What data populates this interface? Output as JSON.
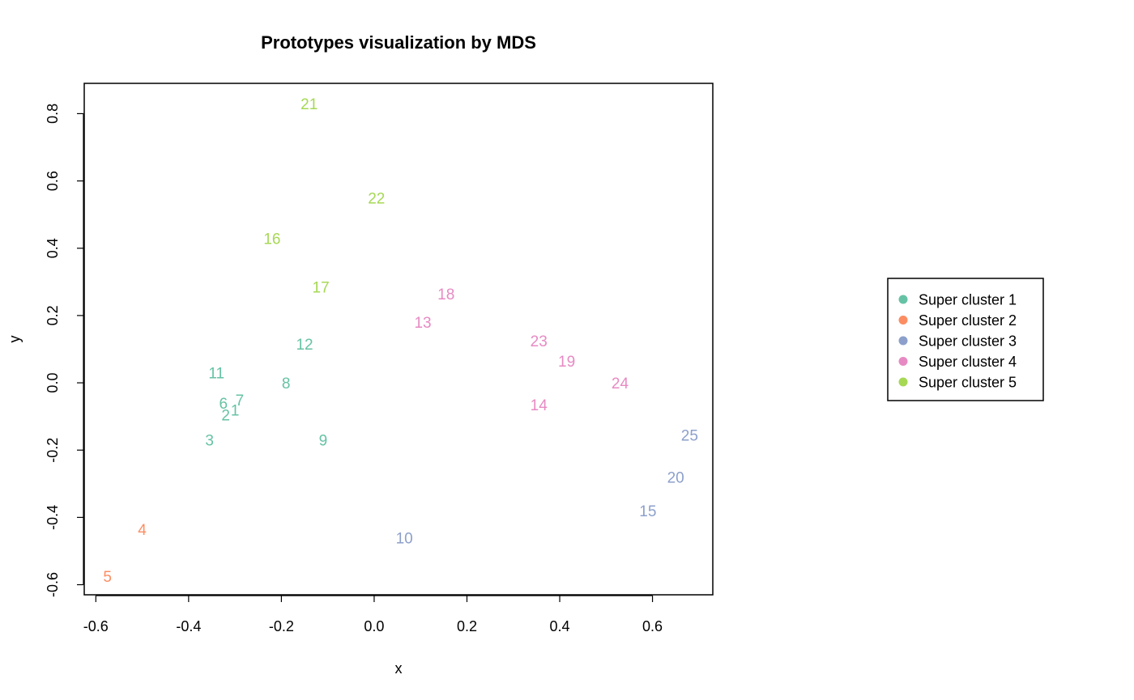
{
  "chart_data": {
    "type": "scatter",
    "title": "Prototypes visualization by MDS",
    "xlabel": "x",
    "ylabel": "y",
    "xlim": [
      -0.625,
      0.73
    ],
    "ylim": [
      -0.63,
      0.89
    ],
    "xticks": [
      -0.6,
      -0.4,
      -0.2,
      0.0,
      0.2,
      0.4,
      0.6
    ],
    "xtick_labels": [
      "-0.6",
      "-0.4",
      "-0.2",
      "0.0",
      "0.2",
      "0.4",
      "0.6"
    ],
    "yticks": [
      -0.6,
      -0.4,
      -0.2,
      0.0,
      0.2,
      0.4,
      0.6,
      0.8
    ],
    "ytick_labels": [
      "-0.6",
      "-0.4",
      "-0.2",
      "0.0",
      "0.2",
      "0.4",
      "0.6",
      "0.8"
    ],
    "grid": false,
    "legend_position": "right",
    "series": [
      {
        "name": "Super cluster 1",
        "color": "#66c2a5",
        "points": [
          {
            "label": "1",
            "x": -0.3,
            "y": -0.08
          },
          {
            "label": "2",
            "x": -0.32,
            "y": -0.095
          },
          {
            "label": "3",
            "x": -0.355,
            "y": -0.17
          },
          {
            "label": "6",
            "x": -0.325,
            "y": -0.06
          },
          {
            "label": "7",
            "x": -0.29,
            "y": -0.05
          },
          {
            "label": "8",
            "x": -0.19,
            "y": 0.0
          },
          {
            "label": "9",
            "x": -0.11,
            "y": -0.17
          },
          {
            "label": "11",
            "x": -0.34,
            "y": 0.03
          },
          {
            "label": "12",
            "x": -0.15,
            "y": 0.115
          }
        ]
      },
      {
        "name": "Super cluster 2",
        "color": "#fc8d62",
        "points": [
          {
            "label": "4",
            "x": -0.5,
            "y": -0.435
          },
          {
            "label": "5",
            "x": -0.575,
            "y": -0.575
          }
        ]
      },
      {
        "name": "Super cluster 3",
        "color": "#8da0cb",
        "points": [
          {
            "label": "10",
            "x": 0.065,
            "y": -0.46
          },
          {
            "label": "15",
            "x": 0.59,
            "y": -0.38
          },
          {
            "label": "20",
            "x": 0.65,
            "y": -0.28
          },
          {
            "label": "25",
            "x": 0.68,
            "y": -0.155
          }
        ]
      },
      {
        "name": "Super cluster 4",
        "color": "#e78ac3",
        "points": [
          {
            "label": "13",
            "x": 0.105,
            "y": 0.18
          },
          {
            "label": "14",
            "x": 0.355,
            "y": -0.065
          },
          {
            "label": "18",
            "x": 0.155,
            "y": 0.265
          },
          {
            "label": "19",
            "x": 0.415,
            "y": 0.065
          },
          {
            "label": "23",
            "x": 0.355,
            "y": 0.125
          },
          {
            "label": "24",
            "x": 0.53,
            "y": 0.0
          }
        ]
      },
      {
        "name": "Super cluster 5",
        "color": "#a6d854",
        "points": [
          {
            "label": "16",
            "x": -0.22,
            "y": 0.43
          },
          {
            "label": "17",
            "x": -0.115,
            "y": 0.285
          },
          {
            "label": "21",
            "x": -0.14,
            "y": 0.83
          },
          {
            "label": "22",
            "x": 0.005,
            "y": 0.55
          }
        ]
      }
    ]
  }
}
